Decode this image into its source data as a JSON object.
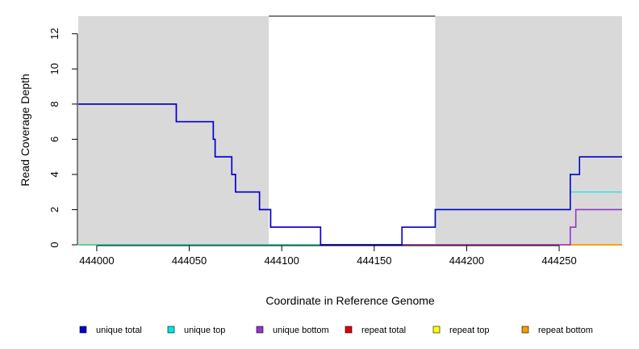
{
  "chart_data": {
    "type": "line",
    "xlabel": "Coordinate in Reference Genome",
    "ylabel": "Read Coverage Depth",
    "xlim": [
      443990,
      444284
    ],
    "ylim": [
      0,
      13
    ],
    "x_ticks": [
      444000,
      444050,
      444100,
      444150,
      444200,
      444250
    ],
    "x_tick_labels": [
      "444000",
      "444050",
      "444100",
      "444150",
      "444200",
      "444250"
    ],
    "y_ticks": [
      0,
      2,
      4,
      6,
      8,
      10,
      12
    ],
    "y_tick_labels": [
      "0",
      "2",
      "4",
      "6",
      "8",
      "10",
      "12"
    ],
    "shaded_regions": [
      [
        443990,
        444093
      ],
      [
        444183,
        444284
      ]
    ],
    "unshaded_region_top_line": [
      444093,
      444183
    ],
    "colors": {
      "shade": "#d9d9d9",
      "unique_total": "#0000cc",
      "unique_top": "#00e5e5",
      "unique_bottom": "#9933cc",
      "repeat_total": "#dd0000",
      "repeat_top": "#ffff00",
      "repeat_bottom": "#ff9900"
    },
    "series": [
      {
        "name": "unique total",
        "color_key": "unique_total",
        "x": [
          443990,
          444043,
          444043,
          444063,
          444063,
          444064,
          444064,
          444073,
          444073,
          444075,
          444075,
          444088,
          444088,
          444094,
          444094,
          444121,
          444121,
          444165,
          444165,
          444183,
          444183,
          444256,
          444256,
          444261,
          444261,
          444284
        ],
        "y": [
          8,
          8,
          7,
          7,
          6,
          6,
          5,
          5,
          4,
          4,
          3,
          3,
          2,
          2,
          1,
          1,
          0,
          0,
          1,
          1,
          2,
          2,
          4,
          4,
          5,
          5
        ]
      },
      {
        "name": "unique top",
        "color_key": "unique_top",
        "x": [
          443990,
          444165,
          444165,
          444183,
          444183,
          444256,
          444256,
          444284
        ],
        "y": [
          0,
          0,
          1,
          1,
          2,
          2,
          3,
          3
        ]
      },
      {
        "name": "unique bottom",
        "color_key": "unique_bottom",
        "x": [
          443990,
          444043,
          444043,
          444063,
          444063,
          444064,
          444064,
          444073,
          444073,
          444075,
          444075,
          444088,
          444088,
          444094,
          444094,
          444121,
          444121,
          444256,
          444256,
          444259,
          444259,
          444284
        ],
        "y": [
          8,
          8,
          7,
          7,
          6,
          6,
          5,
          5,
          4,
          4,
          3,
          3,
          2,
          2,
          1,
          1,
          0,
          0,
          1,
          1,
          2,
          2
        ]
      },
      {
        "name": "repeat total",
        "color_key": "repeat_total",
        "x": [
          443990,
          444284
        ],
        "y": [
          0,
          0
        ]
      },
      {
        "name": "repeat top",
        "color_key": "repeat_top",
        "x": [
          443990,
          444284
        ],
        "y": [
          0,
          0
        ]
      },
      {
        "name": "repeat bottom",
        "color_key": "repeat_bottom",
        "x": [
          443990,
          444284
        ],
        "y": [
          0,
          0
        ]
      }
    ],
    "legend": [
      {
        "label": "unique total",
        "color_key": "unique_total"
      },
      {
        "label": "unique top",
        "color_key": "unique_top"
      },
      {
        "label": "unique bottom",
        "color_key": "unique_bottom"
      },
      {
        "label": "repeat total",
        "color_key": "repeat_total"
      },
      {
        "label": "repeat top",
        "color_key": "repeat_top"
      },
      {
        "label": "repeat bottom",
        "color_key": "repeat_bottom"
      }
    ],
    "legend_position": "bottom"
  }
}
